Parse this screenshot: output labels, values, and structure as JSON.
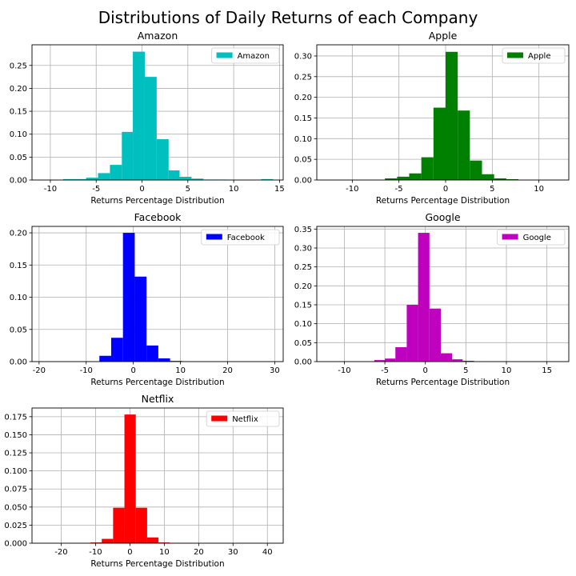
{
  "figure": {
    "title": "Distributions of Daily Returns of each Company"
  },
  "chart_data": [
    {
      "type": "bar",
      "title": "Amazon",
      "legend": "Amazon",
      "color": "#00bfbf",
      "xlabel": "Returns Percentage Distribution",
      "xlim": [
        -12,
        15.4
      ],
      "ylim": [
        0,
        0.295
      ],
      "xticks": [
        -10,
        -5,
        0,
        5,
        10,
        15
      ],
      "yticks": [
        0.0,
        0.05,
        0.1,
        0.15,
        0.2,
        0.25
      ],
      "ytick_labels": [
        "0.00",
        "0.05",
        "0.10",
        "0.15",
        "0.20",
        "0.25"
      ],
      "legend_position": "top-right",
      "grid": true,
      "bin_edges": [
        -8.6,
        -7.3,
        -6.1,
        -4.8,
        -3.5,
        -2.2,
        -1.0,
        0.3,
        1.6,
        2.9,
        4.1,
        5.4,
        6.7,
        7.9,
        9.2,
        10.5,
        11.8,
        13.0,
        14.3
      ],
      "values": [
        0.002,
        0.002,
        0.005,
        0.015,
        0.033,
        0.105,
        0.28,
        0.225,
        0.089,
        0.021,
        0.007,
        0.003,
        0.001,
        0.001,
        0.0005,
        0.0,
        0.0,
        0.002
      ]
    },
    {
      "type": "bar",
      "title": "Apple",
      "legend": "Apple",
      "color": "#008000",
      "xlabel": "Returns Percentage Distribution",
      "xlim": [
        -13.8,
        13.2
      ],
      "ylim": [
        0,
        0.327
      ],
      "xticks": [
        -10,
        -5,
        0,
        5,
        10
      ],
      "yticks": [
        0.0,
        0.05,
        0.1,
        0.15,
        0.2,
        0.25,
        0.3
      ],
      "ytick_labels": [
        "0.00",
        "0.05",
        "0.10",
        "0.15",
        "0.20",
        "0.25",
        "0.30"
      ],
      "legend_position": "top-right",
      "grid": true,
      "bin_edges": [
        -6.5,
        -5.2,
        -3.9,
        -2.6,
        -1.3,
        0.0,
        1.3,
        2.6,
        3.9,
        5.2,
        6.5,
        7.8
      ],
      "values": [
        0.004,
        0.008,
        0.016,
        0.055,
        0.175,
        0.31,
        0.168,
        0.047,
        0.014,
        0.004,
        0.002
      ]
    },
    {
      "type": "bar",
      "title": "Facebook",
      "legend": "Facebook",
      "color": "#0000ff",
      "xlabel": "Returns Percentage Distribution",
      "xlim": [
        -21.5,
        31.8
      ],
      "ylim": [
        0,
        0.21
      ],
      "xticks": [
        -20,
        -10,
        0,
        10,
        20,
        30
      ],
      "yticks": [
        0.0,
        0.05,
        0.1,
        0.15,
        0.2
      ],
      "ytick_labels": [
        "0.00",
        "0.05",
        "0.10",
        "0.15",
        "0.20"
      ],
      "legend_position": "top-right",
      "grid": true,
      "bin_edges": [
        -7.2,
        -4.7,
        -2.2,
        0.3,
        2.8,
        5.3,
        7.8,
        10.3
      ],
      "values": [
        0.009,
        0.037,
        0.2,
        0.132,
        0.025,
        0.005,
        0.001
      ]
    },
    {
      "type": "bar",
      "title": "Google",
      "legend": "Google",
      "color": "#bf00bf",
      "xlabel": "Returns Percentage Distribution",
      "xlim": [
        -13.4,
        17.7
      ],
      "ylim": [
        0,
        0.357
      ],
      "xticks": [
        -10,
        -5,
        0,
        5,
        10,
        15
      ],
      "yticks": [
        0.0,
        0.05,
        0.1,
        0.15,
        0.2,
        0.25,
        0.3,
        0.35
      ],
      "ytick_labels": [
        "0.00",
        "0.05",
        "0.10",
        "0.15",
        "0.20",
        "0.25",
        "0.30",
        "0.35"
      ],
      "legend_position": "top-right",
      "grid": true,
      "bin_edges": [
        -6.3,
        -5.0,
        -3.7,
        -2.3,
        -0.9,
        0.5,
        1.9,
        3.3,
        4.6,
        6.0
      ],
      "values": [
        0.004,
        0.008,
        0.038,
        0.15,
        0.34,
        0.14,
        0.022,
        0.006,
        0.002
      ]
    },
    {
      "type": "bar",
      "title": "Netflix",
      "legend": "Netflix",
      "color": "#ff0000",
      "xlabel": "Returns Percentage Distribution",
      "xlim": [
        -28.5,
        44.6
      ],
      "ylim": [
        0,
        0.187
      ],
      "xticks": [
        -20,
        -10,
        0,
        10,
        20,
        30,
        40
      ],
      "yticks": [
        0.0,
        0.025,
        0.05,
        0.075,
        0.1,
        0.125,
        0.15,
        0.175
      ],
      "ytick_labels": [
        "0.000",
        "0.025",
        "0.050",
        "0.075",
        "0.100",
        "0.125",
        "0.150",
        "0.175"
      ],
      "legend_position": "top-right",
      "grid": true,
      "bin_edges": [
        -11.5,
        -8.2,
        -4.9,
        -1.6,
        1.7,
        5.0,
        8.3,
        11.6,
        14.9,
        18.2
      ],
      "values": [
        0.001,
        0.006,
        0.049,
        0.178,
        0.049,
        0.008,
        0.001,
        0.0005,
        0.0003
      ]
    }
  ]
}
